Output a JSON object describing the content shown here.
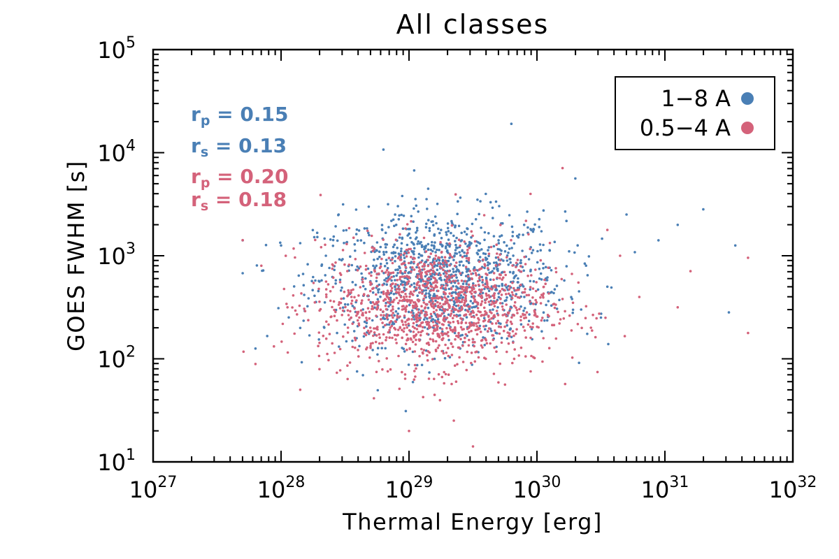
{
  "chart_data": {
    "type": "scatter",
    "title": "All classes",
    "xlabel": "Thermal Energy [erg]",
    "ylabel": "GOES FWHM [s]",
    "xscale": "log",
    "yscale": "log",
    "xlim": [
      1e+27,
      1e+32
    ],
    "ylim": [
      10,
      100000
    ],
    "x_ticks": [
      {
        "base": "10",
        "exp": "27",
        "value": 1e+27
      },
      {
        "base": "10",
        "exp": "28",
        "value": 1e+28
      },
      {
        "base": "10",
        "exp": "29",
        "value": 1e+29
      },
      {
        "base": "10",
        "exp": "30",
        "value": 1e+30
      },
      {
        "base": "10",
        "exp": "31",
        "value": 1e+31
      },
      {
        "base": "10",
        "exp": "32",
        "value": 1e+32
      }
    ],
    "y_ticks": [
      {
        "base": "10",
        "exp": "1",
        "value": 10
      },
      {
        "base": "10",
        "exp": "2",
        "value": 100
      },
      {
        "base": "10",
        "exp": "3",
        "value": 1000
      },
      {
        "base": "10",
        "exp": "4",
        "value": 10000
      },
      {
        "base": "10",
        "exp": "5",
        "value": 100000
      }
    ],
    "legend": {
      "placement": "top-right",
      "entries": [
        {
          "label": "1−8 A",
          "color": "#4a7fb5"
        },
        {
          "label": "0.5−4 A",
          "color": "#d4627a"
        }
      ]
    },
    "annotations": [
      {
        "sym": "r",
        "sub": "p",
        "eq": " = 0.15",
        "color": "#4a7fb5"
      },
      {
        "sym": "r",
        "sub": "s",
        "eq": " = 0.13",
        "color": "#4a7fb5"
      },
      {
        "sym": "r",
        "sub": "p",
        "eq": " = 0.20",
        "color": "#d4627a"
      },
      {
        "sym": "r",
        "sub": "s",
        "eq": " = 0.18",
        "color": "#d4627a"
      }
    ],
    "series": [
      {
        "name": "1−8 A",
        "color": "#4a7fb5",
        "points": [
          [
            28.3,
            2.75
          ],
          [
            29.05,
            3.55
          ],
          [
            29.25,
            3.25
          ],
          [
            29.2,
            2.0
          ],
          [
            30.95,
            3.15
          ],
          [
            28.35,
            3.0
          ],
          [
            29.8,
            4.28
          ],
          [
            28.8,
            4.03
          ],
          [
            28.45,
            3.4
          ],
          [
            29.55,
            3.05
          ],
          [
            31.55,
            3.1
          ],
          [
            31.3,
            3.45
          ],
          [
            28.0,
            3.1
          ],
          [
            27.8,
            2.1
          ],
          [
            29.95,
            2.85
          ],
          [
            30.5,
            2.4
          ],
          [
            31.5,
            2.45
          ],
          [
            28.7,
            2.55
          ],
          [
            29.9,
            3.3
          ],
          [
            30.3,
            3.75
          ],
          [
            29.15,
            3.65
          ],
          [
            29.7,
            3.15
          ],
          [
            30.1,
            3.05
          ],
          [
            28.15,
            2.3
          ],
          [
            29.4,
            2.1
          ],
          [
            31.1,
            3.3
          ],
          [
            30.7,
            3.4
          ],
          [
            28.9,
            3.3
          ],
          [
            29.6,
            3.6
          ],
          [
            30.55,
            2.7
          ]
        ],
        "cluster": {
          "count": 1150,
          "log_x_mean": 29.25,
          "log_x_sd": 0.48,
          "log_y_mean": 2.78,
          "log_y_sd": 0.32
        }
      },
      {
        "name": "0.5−4 A",
        "color": "#d4627a",
        "points": [
          [
            27.8,
            1.95
          ],
          [
            29.0,
            1.3
          ],
          [
            29.5,
            1.15
          ],
          [
            29.35,
            1.4
          ],
          [
            28.15,
            1.7
          ],
          [
            31.65,
            2.98
          ],
          [
            31.65,
            2.25
          ],
          [
            30.2,
            3.85
          ],
          [
            30.05,
            2.2
          ],
          [
            28.4,
            2.15
          ],
          [
            29.6,
            2.0
          ],
          [
            31.1,
            2.5
          ],
          [
            28.65,
            2.3
          ],
          [
            29.95,
            3.6
          ],
          [
            30.8,
            2.6
          ],
          [
            30.55,
            3.25
          ],
          [
            28.3,
            1.9
          ],
          [
            29.75,
            1.75
          ],
          [
            28.05,
            2.5
          ],
          [
            31.2,
            2.85
          ],
          [
            30.35,
            2.3
          ],
          [
            29.2,
            1.65
          ],
          [
            28.55,
            2.6
          ],
          [
            30.65,
            3.0
          ]
        ],
        "cluster": {
          "count": 1300,
          "log_x_mean": 29.2,
          "log_x_sd": 0.45,
          "log_y_mean": 2.52,
          "log_y_sd": 0.3
        }
      }
    ]
  }
}
